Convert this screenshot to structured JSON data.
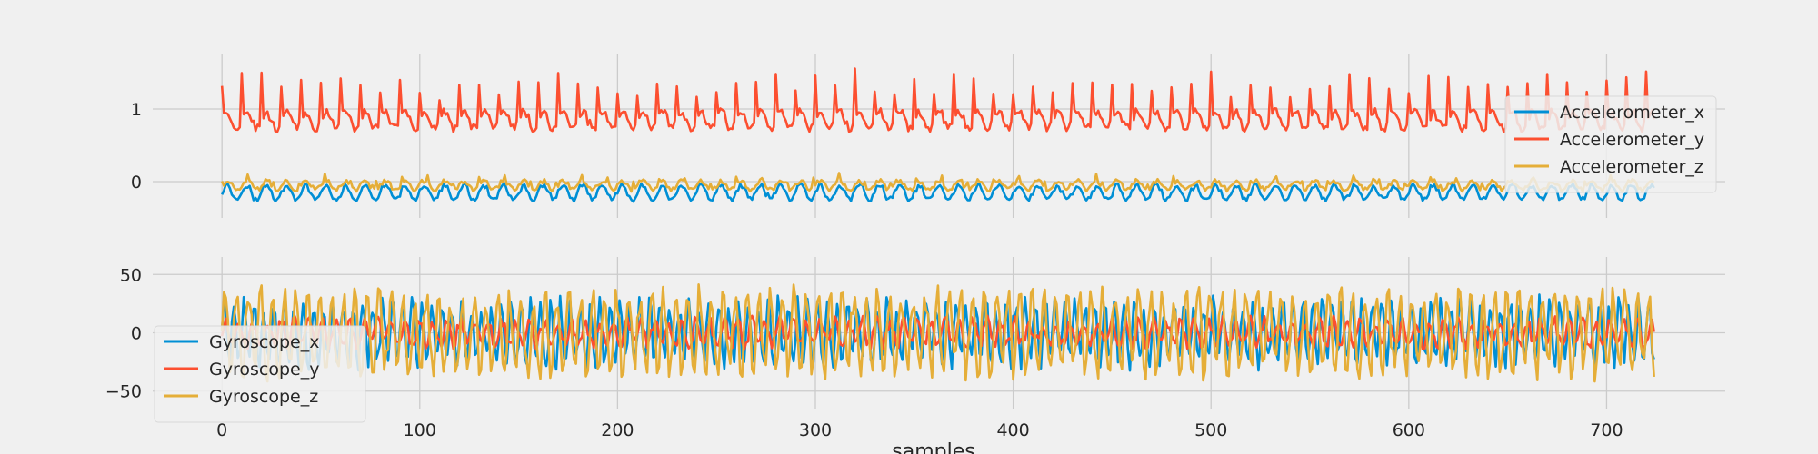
{
  "chart_data": [
    {
      "type": "line",
      "title": "",
      "xlabel": "",
      "ylabel": "",
      "xlim": [
        -35,
        760
      ],
      "ylim": [
        -0.5,
        1.75
      ],
      "xticks": [
        0,
        100,
        200,
        300,
        400,
        500,
        600,
        700
      ],
      "xtick_labels": [
        "",
        "",
        "",
        "",
        "",
        "",
        "",
        ""
      ],
      "yticks": [
        0,
        1
      ],
      "ytick_labels": [
        "0",
        "1"
      ],
      "grid": true,
      "legend_position": "right",
      "n_samples": 725,
      "series": [
        {
          "name": "Accelerometer_x",
          "color": "#008fd5",
          "base": -0.15,
          "amp": 0.1,
          "period": 10,
          "peak": 0.0,
          "peak_every": 0,
          "noise": 0.03,
          "seed": 11
        },
        {
          "name": "Accelerometer_y",
          "color": "#fc4f30",
          "base": 0.85,
          "amp": 0.12,
          "period": 10,
          "peak": 0.5,
          "peak_every": 10,
          "noise": 0.05,
          "seed": 23
        },
        {
          "name": "Accelerometer_z",
          "color": "#e5ae38",
          "base": -0.05,
          "amp": 0.06,
          "period": 10,
          "peak": 0.08,
          "peak_every": 13,
          "noise": 0.03,
          "seed": 37
        }
      ]
    },
    {
      "type": "line",
      "title": "",
      "xlabel": "samples",
      "ylabel": "",
      "xlim": [
        -35,
        760
      ],
      "ylim": [
        -65,
        65
      ],
      "xticks": [
        0,
        100,
        200,
        300,
        400,
        500,
        600,
        700
      ],
      "xtick_labels": [
        "0",
        "100",
        "200",
        "300",
        "400",
        "500",
        "600",
        "700"
      ],
      "yticks": [
        -50,
        0,
        50
      ],
      "ytick_labels": [
        "−50",
        "0",
        "50"
      ],
      "grid": true,
      "legend_position": "left",
      "n_samples": 725,
      "series": [
        {
          "name": "Gyroscope_x",
          "color": "#008fd5",
          "base": 0,
          "amp": 25,
          "period": 5,
          "peak": 0,
          "peak_every": 0,
          "noise": 8,
          "seed": 51
        },
        {
          "name": "Gyroscope_y",
          "color": "#fc4f30",
          "base": 0,
          "amp": 10,
          "period": 7,
          "peak": 0,
          "peak_every": 0,
          "noise": 5,
          "seed": 67
        },
        {
          "name": "Gyroscope_z",
          "color": "#e5ae38",
          "base": 0,
          "amp": 33,
          "period": 6,
          "peak": 0,
          "peak_every": 0,
          "noise": 10,
          "seed": 83
        }
      ]
    }
  ]
}
